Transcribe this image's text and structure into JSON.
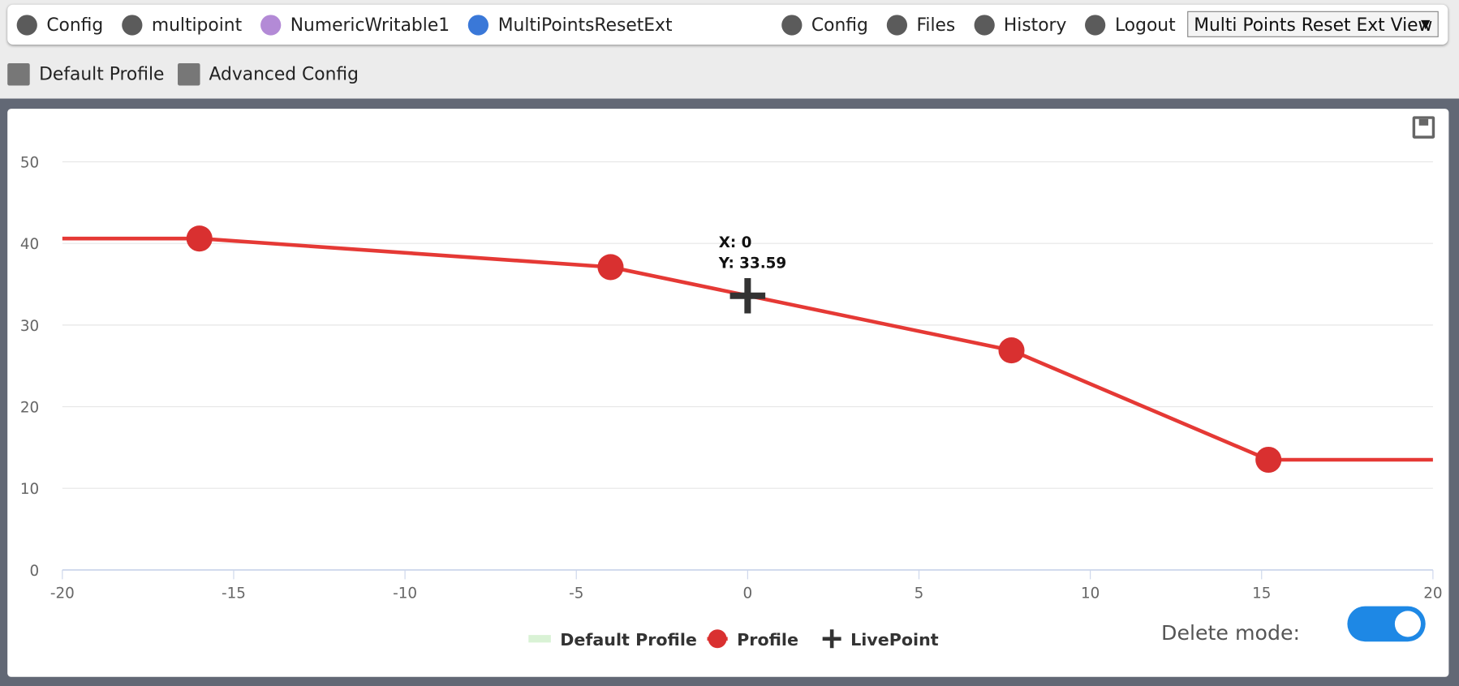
{
  "nav": {
    "left": [
      "Config",
      "multipoint",
      "NumericWritable1",
      "MultiPointsResetExt"
    ],
    "right": [
      "Config",
      "Files",
      "History",
      "Logout"
    ],
    "view_select": "Multi Points Reset Ext View"
  },
  "subnav": [
    "Default Profile",
    "Advanced Config"
  ],
  "delete_mode_label": "Delete mode:",
  "chart_data": {
    "type": "line",
    "xlim": [
      -20,
      20
    ],
    "xticks": [
      -20,
      -15,
      -10,
      -5,
      0,
      5,
      10,
      15,
      20
    ],
    "ylim": [
      0,
      50
    ],
    "yticks": [
      0,
      10,
      20,
      30,
      40,
      50
    ],
    "grid": true,
    "series": [
      {
        "name": "Default Profile",
        "color": "#d9f2d5",
        "x": [],
        "values": []
      },
      {
        "name": "Profile",
        "color": "#e53935",
        "x": [
          -16,
          -4,
          7.7,
          15.2
        ],
        "values": [
          40.6,
          37.1,
          26.9,
          13.5
        ]
      },
      {
        "name": "LivePoint",
        "color": "#333333",
        "x": [
          0
        ],
        "values": [
          33.59
        ],
        "x_labels": [
          "X: 0"
        ],
        "value_labels": [
          "Y: 33.59"
        ]
      }
    ]
  }
}
